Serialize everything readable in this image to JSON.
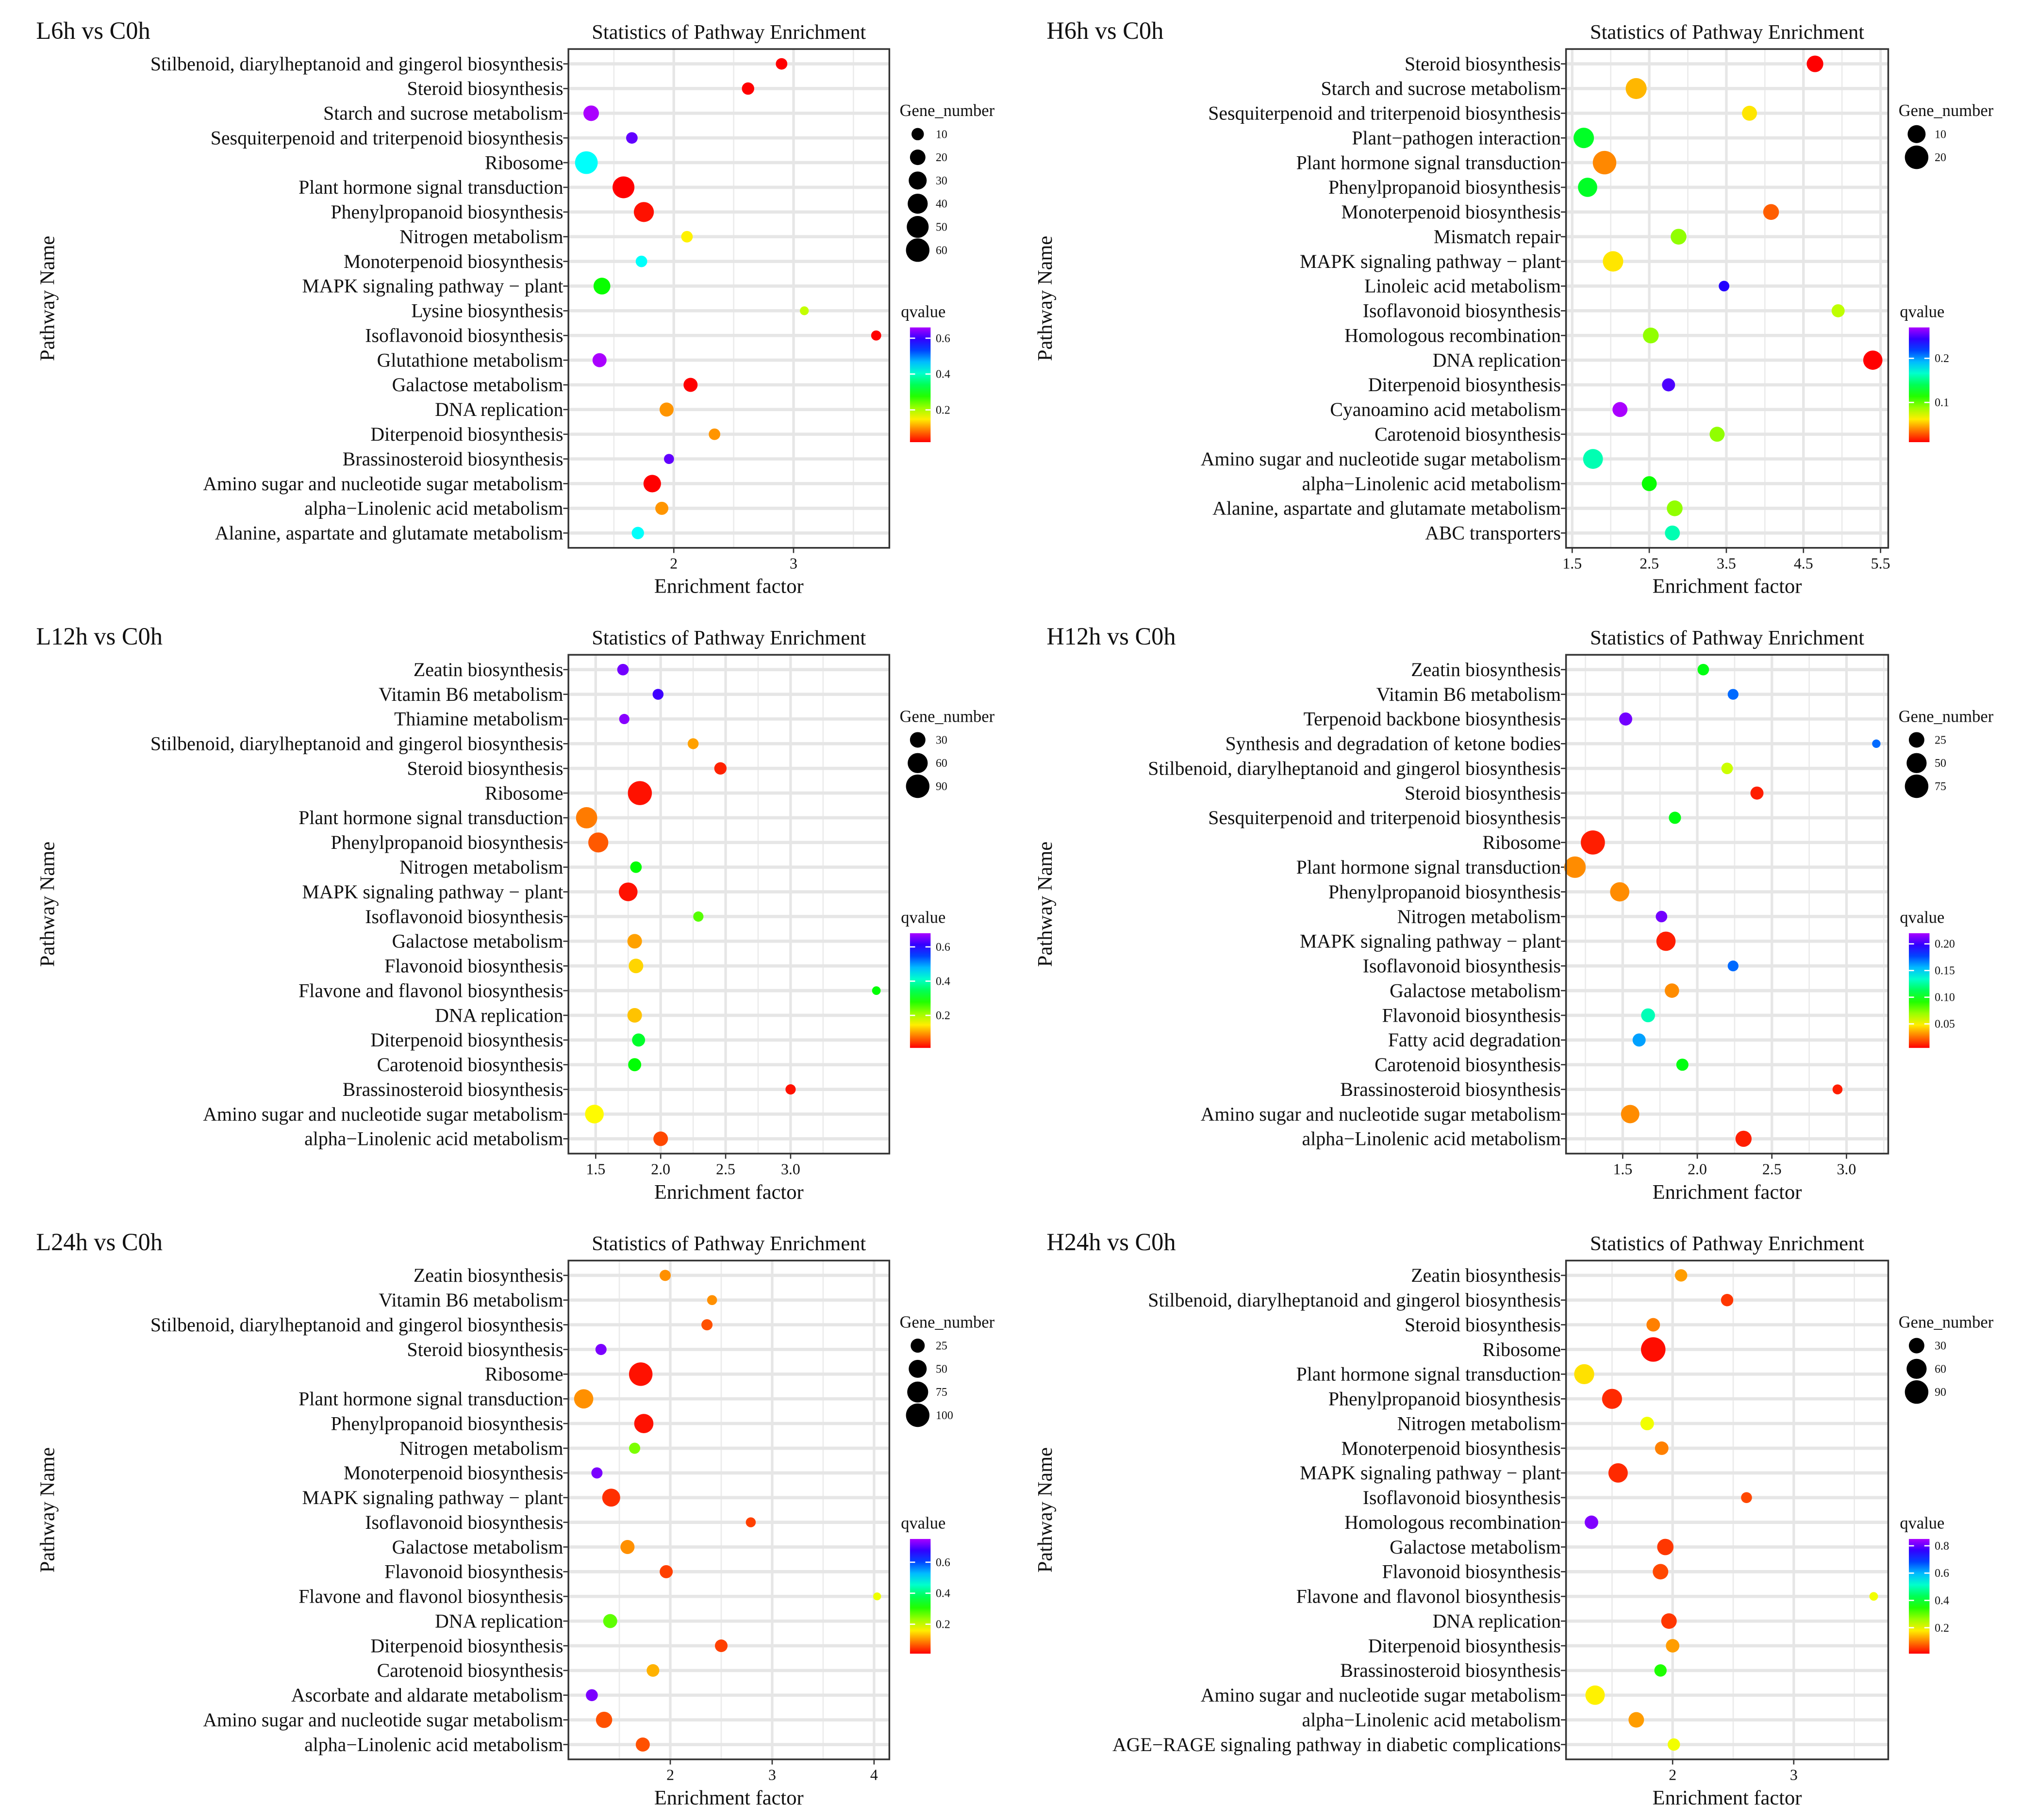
{
  "chart_data": [
    {
      "type": "scatter",
      "panel_label": "L6h vs C0h",
      "title": "Statistics of Pathway Enrichment",
      "xlabel": "Enrichment factor",
      "ylabel": "Pathway Name",
      "xlim": [
        1.12,
        3.8
      ],
      "xticks": [
        "2",
        "3"
      ],
      "size_legend": {
        "title": "Gene_number",
        "values": [
          10,
          20,
          30,
          40,
          50,
          60
        ]
      },
      "color_legend": {
        "title": "qvalue",
        "range": [
          0.02,
          0.66
        ],
        "ticks": [
          "0.2",
          "0.4",
          "0.6"
        ]
      },
      "grid": true,
      "categories": [
        "Stilbenoid, diarylheptanoid and gingerol biosynthesis",
        "Steroid biosynthesis",
        "Starch and sucrose metabolism",
        "Sesquiterpenoid and triterpenoid biosynthesis",
        "Ribosome",
        "Plant hormone signal transduction",
        "Phenylpropanoid biosynthesis",
        "Nitrogen metabolism",
        "Monoterpenoid biosynthesis",
        "MAPK signaling pathway − plant",
        "Lysine biosynthesis",
        "Isoflavonoid biosynthesis",
        "Glutathione metabolism",
        "Galactose metabolism",
        "DNA replication",
        "Diterpenoid biosynthesis",
        "Brassinosteroid biosynthesis",
        "Amino sugar and nucleotide sugar metabolism",
        "alpha−Linolenic acid metabolism",
        "Alanine, aspartate and glutamate metabolism"
      ],
      "x": [
        2.9,
        2.62,
        1.31,
        1.65,
        1.27,
        1.58,
        1.75,
        2.11,
        1.73,
        1.4,
        3.09,
        3.69,
        1.38,
        2.14,
        1.94,
        2.34,
        1.96,
        1.82,
        1.9,
        1.7
      ],
      "gene_number": [
        8,
        10,
        20,
        8,
        55,
        50,
        40,
        8,
        8,
        25,
        3,
        5,
        15,
        15,
        15,
        8,
        5,
        28,
        12,
        10
      ],
      "qvalue": [
        0.02,
        0.02,
        0.66,
        0.62,
        0.43,
        0.02,
        0.03,
        0.15,
        0.43,
        0.29,
        0.19,
        0.02,
        0.66,
        0.02,
        0.1,
        0.1,
        0.62,
        0.02,
        0.1,
        0.43
      ]
    },
    {
      "type": "scatter",
      "panel_label": "H6h vs C0h",
      "title": "Statistics of Pathway Enrichment",
      "xlabel": "Enrichment factor",
      "ylabel": "Pathway Name",
      "xlim": [
        1.42,
        5.6
      ],
      "xticks": [
        "1.5",
        "2.5",
        "3.5",
        "4.5",
        "5.5"
      ],
      "size_legend": {
        "title": "Gene_number",
        "values": [
          10,
          20
        ]
      },
      "color_legend": {
        "title": "qvalue",
        "range": [
          0.01,
          0.27
        ],
        "ticks": [
          "0.1",
          "0.2"
        ]
      },
      "grid": true,
      "categories": [
        "Steroid biosynthesis",
        "Starch and sucrose metabolism",
        "Sesquiterpenoid and triterpenoid biosynthesis",
        "Plant−pathogen interaction",
        "Plant hormone signal transduction",
        "Phenylpropanoid biosynthesis",
        "Monoterpenoid biosynthesis",
        "Mismatch repair",
        "MAPK signaling pathway − plant",
        "Linoleic acid metabolism",
        "Isoflavonoid biosynthesis",
        "Homologous recombination",
        "DNA replication",
        "Diterpenoid biosynthesis",
        "Cyanoamino acid metabolism",
        "Carotenoid biosynthesis",
        "Amino sugar and nucleotide sugar metabolism",
        "alpha−Linolenic acid metabolism",
        "Alanine, aspartate and glutamate metabolism",
        "ABC transporters"
      ],
      "x": [
        4.65,
        2.33,
        3.8,
        1.65,
        1.92,
        1.7,
        4.08,
        2.88,
        2.03,
        3.47,
        4.95,
        2.52,
        5.4,
        2.75,
        2.12,
        3.38,
        1.77,
        2.5,
        2.83,
        2.8
      ],
      "gene_number": [
        8,
        15,
        6,
        14,
        20,
        12,
        7,
        7,
        14,
        2,
        4,
        7,
        12,
        4,
        6,
        6,
        13,
        6,
        7,
        6
      ],
      "qvalue": [
        0.01,
        0.05,
        0.06,
        0.13,
        0.04,
        0.13,
        0.03,
        0.09,
        0.06,
        0.24,
        0.08,
        0.09,
        0.01,
        0.25,
        0.27,
        0.09,
        0.16,
        0.12,
        0.09,
        0.16
      ]
    },
    {
      "type": "scatter",
      "panel_label": "L12h vs C0h",
      "title": "Statistics of Pathway Enrichment",
      "xlabel": "Enrichment factor",
      "ylabel": "Pathway Name",
      "xlim": [
        1.29,
        3.76
      ],
      "xticks": [
        "1.5",
        "2.0",
        "2.5",
        "3.0"
      ],
      "size_legend": {
        "title": "Gene_number",
        "values": [
          30,
          60,
          90
        ]
      },
      "color_legend": {
        "title": "qvalue",
        "range": [
          0.01,
          0.68
        ],
        "ticks": [
          "0.2",
          "0.4",
          "0.6"
        ]
      },
      "grid": true,
      "categories": [
        "Zeatin biosynthesis",
        "Vitamin B6 metabolism",
        "Thiamine metabolism",
        "Stilbenoid, diarylheptanoid and gingerol biosynthesis",
        "Steroid biosynthesis",
        "Ribosome",
        "Plant hormone signal transduction",
        "Phenylpropanoid biosynthesis",
        "Nitrogen metabolism",
        "MAPK signaling pathway − plant",
        "Isoflavonoid biosynthesis",
        "Galactose metabolism",
        "Flavonoid biosynthesis",
        "Flavone and flavonol biosynthesis",
        "DNA replication",
        "Diterpenoid biosynthesis",
        "Carotenoid biosynthesis",
        "Brassinosteroid biosynthesis",
        "Amino sugar and nucleotide sugar metabolism",
        "alpha−Linolenic acid metabolism"
      ],
      "x": [
        1.71,
        1.98,
        1.72,
        2.25,
        2.46,
        1.84,
        1.43,
        1.52,
        1.81,
        1.75,
        2.29,
        1.8,
        1.81,
        3.66,
        1.8,
        1.83,
        1.8,
        3.0,
        1.49,
        2.0
      ],
      "gene_number": [
        12,
        10,
        8,
        10,
        15,
        95,
        70,
        60,
        12,
        50,
        8,
        25,
        25,
        4,
        25,
        18,
        18,
        8,
        50,
        25
      ],
      "qvalue": [
        0.65,
        0.62,
        0.66,
        0.1,
        0.03,
        0.02,
        0.08,
        0.06,
        0.3,
        0.02,
        0.25,
        0.1,
        0.13,
        0.3,
        0.12,
        0.32,
        0.3,
        0.02,
        0.15,
        0.05
      ]
    },
    {
      "type": "scatter",
      "panel_label": "H12h vs C0h",
      "title": "Statistics of Pathway Enrichment",
      "xlabel": "Enrichment factor",
      "ylabel": "Pathway Name",
      "xlim": [
        1.12,
        3.28
      ],
      "xticks": [
        "1.5",
        "2.0",
        "2.5",
        "3.0"
      ],
      "size_legend": {
        "title": "Gene_number",
        "values": [
          25,
          50,
          75
        ]
      },
      "color_legend": {
        "title": "qvalue",
        "range": [
          0.005,
          0.22
        ],
        "ticks": [
          "0.05",
          "0.10",
          "0.15",
          "0.20"
        ]
      },
      "grid": true,
      "categories": [
        "Zeatin biosynthesis",
        "Vitamin B6 metabolism",
        "Terpenoid backbone biosynthesis",
        "Synthesis and degradation of ketone bodies",
        "Stilbenoid, diarylheptanoid and gingerol biosynthesis",
        "Steroid biosynthesis",
        "Sesquiterpenoid and triterpenoid biosynthesis",
        "Ribosome",
        "Plant hormone signal transduction",
        "Phenylpropanoid biosynthesis",
        "Nitrogen metabolism",
        "MAPK signaling pathway − plant",
        "Isoflavonoid biosynthesis",
        "Galactose metabolism",
        "Flavonoid biosynthesis",
        "Fatty acid degradation",
        "Carotenoid biosynthesis",
        "Brassinosteroid biosynthesis",
        "Amino sugar and nucleotide sugar metabolism",
        "alpha−Linolenic acid metabolism"
      ],
      "x": [
        2.04,
        2.24,
        1.52,
        3.2,
        2.2,
        2.4,
        1.85,
        1.3,
        1.18,
        1.48,
        1.76,
        1.79,
        2.24,
        1.83,
        1.67,
        1.61,
        1.9,
        2.94,
        1.55,
        2.31
      ],
      "gene_number": [
        10,
        8,
        15,
        3,
        10,
        15,
        12,
        80,
        60,
        45,
        10,
        45,
        8,
        20,
        18,
        15,
        12,
        6,
        40,
        28
      ],
      "qvalue": [
        0.1,
        0.17,
        0.21,
        0.17,
        0.06,
        0.01,
        0.1,
        0.01,
        0.03,
        0.03,
        0.21,
        0.01,
        0.17,
        0.03,
        0.13,
        0.16,
        0.1,
        0.01,
        0.03,
        0.01
      ]
    },
    {
      "type": "scatter",
      "panel_label": "L24h vs C0h",
      "title": "Statistics of Pathway Enrichment",
      "xlabel": "Enrichment factor",
      "ylabel": "Pathway Name",
      "xlim": [
        1.0,
        4.15
      ],
      "xticks": [
        "2",
        "3",
        "4"
      ],
      "size_legend": {
        "title": "Gene_number",
        "values": [
          25,
          50,
          75,
          100
        ]
      },
      "color_legend": {
        "title": "qvalue",
        "range": [
          0.01,
          0.75
        ],
        "ticks": [
          "0.2",
          "0.4",
          "0.6"
        ]
      },
      "grid": true,
      "categories": [
        "Zeatin biosynthesis",
        "Vitamin B6 metabolism",
        "Stilbenoid, diarylheptanoid and gingerol biosynthesis",
        "Steroid biosynthesis",
        "Ribosome",
        "Plant hormone signal transduction",
        "Phenylpropanoid biosynthesis",
        "Nitrogen metabolism",
        "Monoterpenoid biosynthesis",
        "MAPK signaling pathway − plant",
        "Isoflavonoid biosynthesis",
        "Galactose metabolism",
        "Flavonoid biosynthesis",
        "Flavone and flavonol biosynthesis",
        "DNA replication",
        "Diterpenoid biosynthesis",
        "Carotenoid biosynthesis",
        "Ascorbate and aldarate metabolism",
        "Amino sugar and nucleotide sugar metabolism",
        "alpha−Linolenic acid metabolism"
      ],
      "x": [
        1.95,
        2.41,
        2.36,
        1.32,
        1.71,
        1.15,
        1.74,
        1.65,
        1.28,
        1.42,
        2.79,
        1.58,
        1.96,
        4.03,
        1.41,
        2.5,
        1.83,
        1.23,
        1.35,
        1.73
      ],
      "gene_number": [
        12,
        8,
        12,
        12,
        100,
        60,
        60,
        12,
        12,
        50,
        8,
        25,
        20,
        3,
        25,
        18,
        18,
        15,
        38,
        25
      ],
      "qvalue": [
        0.1,
        0.1,
        0.06,
        0.72,
        0.02,
        0.1,
        0.02,
        0.25,
        0.72,
        0.04,
        0.05,
        0.1,
        0.05,
        0.18,
        0.27,
        0.05,
        0.12,
        0.72,
        0.06,
        0.06
      ]
    },
    {
      "type": "scatter",
      "panel_label": "H24h vs C0h",
      "title": "Statistics of Pathway Enrichment",
      "xlabel": "Enrichment factor",
      "ylabel": "Pathway Name",
      "xlim": [
        1.12,
        3.78
      ],
      "xticks": [
        "2",
        "3"
      ],
      "size_legend": {
        "title": "Gene_number",
        "values": [
          30,
          60,
          90
        ]
      },
      "color_legend": {
        "title": "qvalue",
        "range": [
          0.01,
          0.85
        ],
        "ticks": [
          "0.2",
          "0.4",
          "0.6",
          "0.8"
        ]
      },
      "grid": true,
      "categories": [
        "Zeatin biosynthesis",
        "Stilbenoid, diarylheptanoid and gingerol biosynthesis",
        "Steroid biosynthesis",
        "Ribosome",
        "Plant hormone signal transduction",
        "Phenylpropanoid biosynthesis",
        "Nitrogen metabolism",
        "Monoterpenoid biosynthesis",
        "MAPK signaling pathway − plant",
        "Isoflavonoid biosynthesis",
        "Homologous recombination",
        "Galactose metabolism",
        "Flavonoid biosynthesis",
        "Flavone and flavonol biosynthesis",
        "DNA replication",
        "Diterpenoid biosynthesis",
        "Brassinosteroid biosynthesis",
        "Amino sugar and nucleotide sugar metabolism",
        "alpha−Linolenic acid metabolism",
        "AGE−RAGE signaling pathway in diabetic complications"
      ],
      "x": [
        2.07,
        2.45,
        1.84,
        1.84,
        1.27,
        1.5,
        1.79,
        1.91,
        1.55,
        2.61,
        1.33,
        1.94,
        1.9,
        3.66,
        1.97,
        2.0,
        1.9,
        1.36,
        1.7,
        2.01
      ],
      "gene_number": [
        15,
        15,
        20,
        100,
        60,
        60,
        20,
        20,
        55,
        10,
        20,
        35,
        30,
        4,
        30,
        20,
        15,
        55,
        30,
        15
      ],
      "qvalue": [
        0.12,
        0.05,
        0.1,
        0.02,
        0.17,
        0.04,
        0.2,
        0.1,
        0.04,
        0.06,
        0.82,
        0.05,
        0.06,
        0.2,
        0.05,
        0.12,
        0.35,
        0.18,
        0.12,
        0.2
      ]
    }
  ]
}
